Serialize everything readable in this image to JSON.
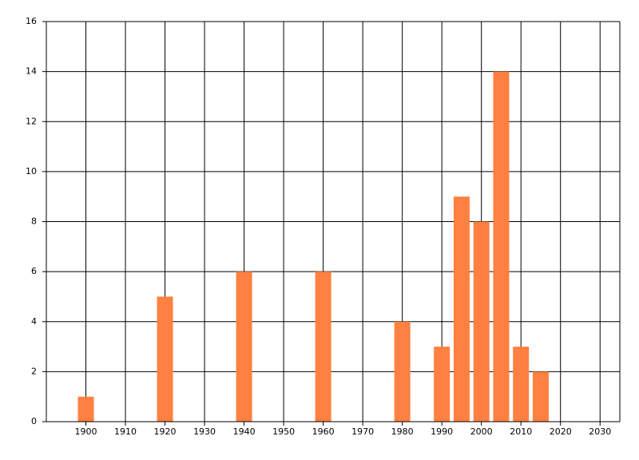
{
  "chart_data": {
    "type": "bar",
    "x": [
      1900,
      1920,
      1940,
      1960,
      1980,
      1990,
      1995,
      2000,
      2005,
      2010,
      2015
    ],
    "values": [
      1,
      5,
      6,
      6,
      4,
      3,
      9,
      8,
      14,
      3,
      2
    ],
    "color": "#ff8040",
    "xlim": [
      1890,
      2035
    ],
    "xticks": [
      1900,
      1910,
      1920,
      1930,
      1940,
      1950,
      1960,
      1970,
      1980,
      1990,
      2000,
      2010,
      2020,
      2030
    ],
    "ylim": [
      0,
      16
    ],
    "yticks": [
      0,
      2,
      4,
      6,
      8,
      10,
      12,
      14,
      16
    ],
    "grid": true
  }
}
